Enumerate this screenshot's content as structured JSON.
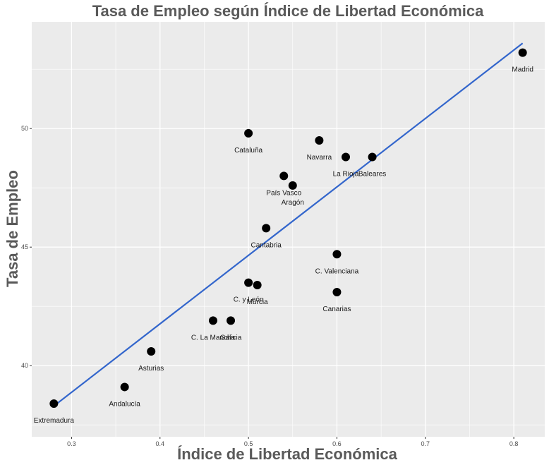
{
  "chart_data": {
    "type": "scatter",
    "title": "Tasa de Empleo según Índice de Libertad Económica",
    "xlabel": "Índice de Libertad Económica",
    "ylabel": "Tasa de Empleo",
    "xlim": [
      0.255,
      0.835
    ],
    "ylim": [
      37.0,
      54.5
    ],
    "xticks": [
      0.3,
      0.4,
      0.5,
      0.6,
      0.7,
      0.8
    ],
    "xtick_labels": [
      "0.3",
      "0.4",
      "0.5",
      "0.6",
      "0.7",
      "0.8"
    ],
    "yticks": [
      40,
      45,
      50
    ],
    "ytick_labels": [
      "40",
      "45",
      "50"
    ],
    "grid": true,
    "points": [
      {
        "label": "Extremadura",
        "x": 0.28,
        "y": 38.4
      },
      {
        "label": "Andalucía",
        "x": 0.36,
        "y": 39.1
      },
      {
        "label": "Asturias",
        "x": 0.39,
        "y": 40.6
      },
      {
        "label": "C. La Mancha",
        "x": 0.46,
        "y": 41.9
      },
      {
        "label": "Galicia",
        "x": 0.48,
        "y": 41.9
      },
      {
        "label": "C. y León",
        "x": 0.5,
        "y": 43.5
      },
      {
        "label": "Murcia",
        "x": 0.51,
        "y": 43.4
      },
      {
        "label": "Cantabria",
        "x": 0.52,
        "y": 45.8
      },
      {
        "label": "Cataluña",
        "x": 0.5,
        "y": 49.8
      },
      {
        "label": "País Vasco",
        "x": 0.54,
        "y": 48.0
      },
      {
        "label": "Aragón",
        "x": 0.55,
        "y": 47.6
      },
      {
        "label": "Navarra",
        "x": 0.58,
        "y": 49.5
      },
      {
        "label": "La Rioja",
        "x": 0.61,
        "y": 48.8
      },
      {
        "label": "Baleares",
        "x": 0.64,
        "y": 48.8
      },
      {
        "label": "C. Valenciana",
        "x": 0.6,
        "y": 44.7
      },
      {
        "label": "Canarias",
        "x": 0.6,
        "y": 43.1
      },
      {
        "label": "Madrid",
        "x": 0.81,
        "y": 53.2
      }
    ],
    "trend_line": {
      "x": [
        0.28,
        0.81
      ],
      "y": [
        38.3,
        53.6
      ]
    },
    "colors": {
      "panel": "#ebebeb",
      "grid": "#ffffff",
      "point": "#000000",
      "line": "#3366cc"
    }
  }
}
